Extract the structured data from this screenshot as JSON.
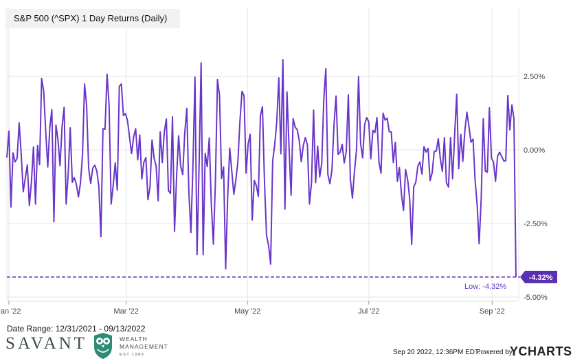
{
  "title": "S&P 500 (^SPX) 1 Day Returns (Daily)",
  "date_range": "Date Range: 12/31/2021 - 09/13/2022",
  "footer": {
    "timestamp": "Sep 20 2022, 12:36PM EDT.",
    "powered_by": "Powered by",
    "ycharts_logo": "YCHARTS"
  },
  "brand": {
    "name": "SAVANT",
    "sub1": "WEALTH",
    "sub2": "MANAGEMENT",
    "est": "EST 1986",
    "owl_icon": "owl-logo-icon",
    "accent": "#2e8b76"
  },
  "colors": {
    "line": "#6a35c9",
    "grid": "#e6e6e6",
    "axis_text": "#444444",
    "low_line": "#5a2fb0"
  },
  "chart_data": {
    "type": "line",
    "title": "S&P 500 (^SPX) 1 Day Returns (Daily)",
    "ylabel": "",
    "xlabel": "",
    "y_unit": "%",
    "ylim": [
      -5.0,
      3.0
    ],
    "y_ticks": [
      2.5,
      0.0,
      -2.5,
      -5.0
    ],
    "y_tick_labels": [
      "2.50%",
      "0.00%",
      "-2.50%",
      "-5.00%"
    ],
    "xlim": [
      "2021-12-31",
      "2022-09-13"
    ],
    "x_ticks": [
      {
        "label": "Jan '22",
        "date": "2022-01-01"
      },
      {
        "label": "Mar '22",
        "date": "2022-03-01"
      },
      {
        "label": "May '22",
        "date": "2022-05-01"
      },
      {
        "label": "Jul '22",
        "date": "2022-07-01"
      },
      {
        "label": "Sep '22",
        "date": "2022-09-01"
      }
    ],
    "grid": true,
    "low_value": -4.32,
    "low_badge": "-4.32%",
    "low_text": "Low: -4.32%",
    "series": [
      {
        "values": [
          -0.26,
          0.64,
          -1.94,
          -0.1,
          -0.41,
          -0.29,
          0.92,
          -0.14,
          -1.42,
          -0.97,
          -0.51,
          -1.89,
          -1.1,
          0.1,
          -1.84,
          0.15,
          -0.5,
          2.43,
          2.0,
          0.63,
          -0.58,
          0.76,
          1.37,
          -2.44,
          0.84,
          0.34,
          -0.54,
          0.79,
          1.45,
          -1.84,
          -0.8,
          0.75,
          -1.1,
          -0.94,
          -1.17,
          -1.6,
          -1.12,
          -0.17,
          2.24,
          1.5,
          -0.63,
          -1.14,
          -0.62,
          -0.52,
          -0.72,
          -1.26,
          -2.95,
          0.72,
          0.7,
          2.57,
          1.5,
          -1.84,
          -1.21,
          -0.44,
          -1.37,
          2.16,
          2.24,
          1.17,
          1.23,
          1.0,
          0.43,
          -0.12,
          0.45,
          0.72,
          -0.34,
          0.51,
          -0.99,
          -0.42,
          -0.26,
          -1.69,
          -1.26,
          0.34,
          -0.28,
          -0.55,
          -1.73,
          0.61,
          -0.43,
          0.61,
          1.05,
          -1.38,
          -1.48,
          1.12,
          -2.77,
          -0.92,
          0.48,
          -0.55,
          -0.84,
          0.57,
          1.41,
          -1.41,
          -2.81,
          -0.56,
          2.47,
          -3.56,
          -0.57,
          2.96,
          -3.56,
          -0.12,
          -0.57,
          0.41,
          -1.86,
          -3.2,
          -1.07,
          2.39,
          1.86,
          -0.97,
          -0.58,
          -4.04,
          -1.6,
          0.06,
          -0.72,
          -1.51,
          -1.02,
          -0.39,
          0.99,
          1.99,
          1.84,
          -0.79,
          0.2,
          0.53,
          -2.38,
          -1.04,
          -1.21,
          -1.58,
          1.16,
          1.47,
          -1.09,
          -2.91,
          -3.25,
          -3.88,
          -0.38,
          0.18,
          0.95,
          2.45,
          -0.13,
          3.06,
          -2.01,
          1.97,
          0.1,
          -1.54,
          1.06,
          0.77,
          0.69,
          0.32,
          -0.4,
          0.16,
          0.42,
          0.16,
          -1.84,
          -1.12,
          1.35,
          -1.11,
          0.13,
          -0.92,
          -0.45,
          1.72,
          2.76,
          -0.84,
          -1.15,
          -0.67,
          0.86,
          1.83,
          -0.15,
          -0.08,
          0.19,
          -0.44,
          -0.04,
          1.87,
          -0.99,
          -1.64,
          -0.73,
          -0.01,
          2.49,
          0.23,
          -0.27,
          0.87,
          1.1,
          0.95,
          -0.3,
          0.66,
          0.59,
          1.1,
          -0.42,
          -0.79,
          1.25,
          1.01,
          1.08,
          0.62,
          0.61,
          -0.43,
          0.26,
          -1.07,
          -0.6,
          -1.53,
          -2.06,
          -0.67,
          -1.0,
          -1.65,
          -3.21,
          -1.25,
          -1.1,
          -0.55,
          -0.41,
          -0.82,
          0.11,
          -0.07,
          0.05,
          -1.04,
          -0.78,
          -0.06,
          -0.04,
          0.38,
          -0.3,
          -0.73,
          0.42,
          -1.12,
          -1.26,
          0.42,
          -0.98,
          0.51,
          1.89,
          -0.64,
          0.53,
          -0.39,
          0.66,
          1.28,
          0.8,
          0.26,
          0.37,
          -1.02,
          -1.86,
          -3.19,
          -1.63,
          1.06,
          -0.72,
          -0.76,
          1.43,
          -0.28,
          -0.41,
          -1.07,
          -0.21,
          -0.08,
          -0.22,
          -0.37,
          -0.37,
          1.85,
          0.68,
          1.53,
          1.06,
          -4.32
        ]
      }
    ]
  }
}
